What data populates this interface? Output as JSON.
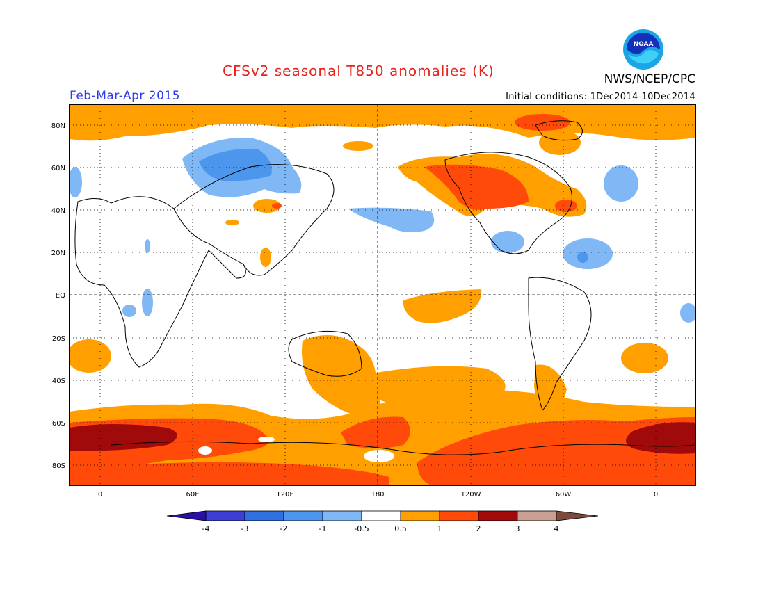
{
  "header": {
    "title": "CFSv2 seasonal T850 anomalies (K)",
    "season": "Feb-Mar-Apr 2015",
    "initial_conditions": "Initial conditions: 1Dec2014-10Dec2014",
    "agency": "NWS/NCEP/CPC",
    "logo_text": "NOAA"
  },
  "axes": {
    "lat_labels": [
      "80N",
      "60N",
      "40N",
      "20N",
      "EQ",
      "20S",
      "40S",
      "60S",
      "80S"
    ],
    "lon_labels": [
      "0",
      "60E",
      "120E",
      "180",
      "120W",
      "60W",
      "0"
    ]
  },
  "colorbar": {
    "labels": [
      "-4",
      "-3",
      "-2",
      "-1",
      "-0.5",
      "0.5",
      "1",
      "2",
      "3",
      "4"
    ],
    "colors": [
      "#2a0fa0",
      "#3c3fd6",
      "#2f6fe0",
      "#4d96ee",
      "#80b8f5",
      "#ffffff",
      "#ffa000",
      "#ff4a0a",
      "#a00a0a",
      "#c89f94",
      "#7a4a3c"
    ]
  },
  "colors": {
    "warm1": "#ffa000",
    "warm2": "#ff4a0a",
    "warm3": "#a00a0a",
    "cool1": "#80b8f5",
    "cool2": "#4d96ee",
    "cool3": "#2f6fe0",
    "title": "#e8231c",
    "season": "#2e3cf0"
  }
}
